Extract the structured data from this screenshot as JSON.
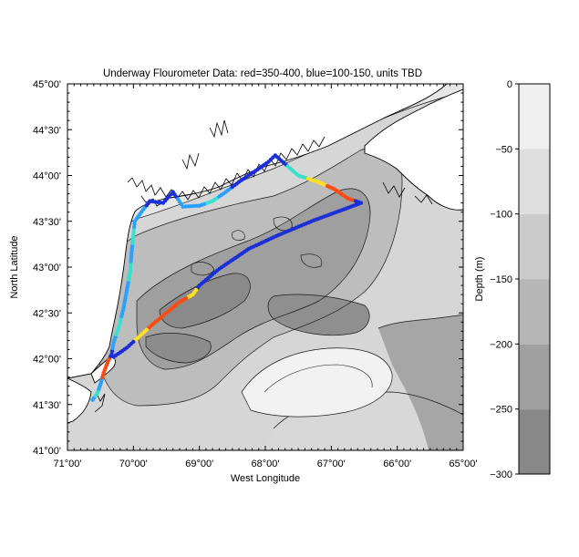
{
  "figure": {
    "title": "Underway Flourometer Data: red=350-400, blue=100-150, units TBD",
    "xlabel": "West Longitude",
    "ylabel": "North Latitude",
    "colorbar_label": "Depth (m)"
  },
  "map": {
    "lon_range": [
      -71.0,
      -65.0
    ],
    "lat_range": [
      41.0,
      45.0
    ],
    "x_ticks": [
      "71°00'",
      "70°00'",
      "69°00'",
      "68°00'",
      "67°00'",
      "66°00'",
      "65°00'"
    ],
    "y_ticks": [
      "45°00'",
      "44°30'",
      "44°00'",
      "43°30'",
      "43°00'",
      "42°30'",
      "42°00'",
      "41°30'",
      "41°00'"
    ],
    "land_color": "#ffffff",
    "coastline_color": "#000000"
  },
  "colorbar": {
    "ticks": [
      "0",
      "−50",
      "−100",
      "−150",
      "−200",
      "−250",
      "−300"
    ],
    "shades": [
      "#f0f0f0",
      "#dedede",
      "#cbcbcb",
      "#b6b6b6",
      "#a0a0a0",
      "#888888"
    ]
  },
  "chart_data": {
    "type": "scatter",
    "title": "Underway Flourometer Data: red=350-400, blue=100-150, units TBD",
    "xlabel": "West Longitude",
    "ylabel": "North Latitude",
    "xlim": [
      -71.0,
      -65.0
    ],
    "ylim": [
      41.0,
      45.0
    ],
    "legend": "none",
    "colors": {
      "low": "#1a2fd6",
      "mid_low": "#2aa0ff",
      "mid": "#38e0d0",
      "mid_high": "#ffe020",
      "high": "#ff4a10"
    },
    "series": [
      {
        "name": "Underway Flourometer Data",
        "points": [
          {
            "lon": -70.62,
            "lat": 41.55,
            "level": "mid_low"
          },
          {
            "lon": -70.55,
            "lat": 41.62,
            "level": "mid"
          },
          {
            "lon": -70.5,
            "lat": 41.72,
            "level": "mid_low"
          },
          {
            "lon": -70.45,
            "lat": 41.85,
            "level": "high"
          },
          {
            "lon": -70.38,
            "lat": 41.98,
            "level": "high"
          },
          {
            "lon": -70.33,
            "lat": 42.05,
            "level": "low"
          },
          {
            "lon": -70.3,
            "lat": 42.18,
            "level": "mid_low"
          },
          {
            "lon": -70.22,
            "lat": 42.35,
            "level": "mid"
          },
          {
            "lon": -70.15,
            "lat": 42.55,
            "level": "mid_low"
          },
          {
            "lon": -70.1,
            "lat": 42.75,
            "level": "mid_low"
          },
          {
            "lon": -70.05,
            "lat": 42.95,
            "level": "mid"
          },
          {
            "lon": -70.03,
            "lat": 43.15,
            "level": "mid_low"
          },
          {
            "lon": -70.0,
            "lat": 43.35,
            "level": "mid"
          },
          {
            "lon": -69.98,
            "lat": 43.5,
            "level": "mid_low"
          },
          {
            "lon": -69.85,
            "lat": 43.63,
            "level": "mid_low"
          },
          {
            "lon": -69.75,
            "lat": 43.72,
            "level": "low"
          },
          {
            "lon": -69.55,
            "lat": 43.7,
            "level": "low"
          },
          {
            "lon": -69.4,
            "lat": 43.82,
            "level": "low"
          },
          {
            "lon": -69.25,
            "lat": 43.66,
            "level": "mid_low"
          },
          {
            "lon": -69.0,
            "lat": 43.67,
            "level": "mid_low"
          },
          {
            "lon": -68.8,
            "lat": 43.72,
            "level": "mid"
          },
          {
            "lon": -68.6,
            "lat": 43.82,
            "level": "mid_low"
          },
          {
            "lon": -68.4,
            "lat": 43.93,
            "level": "low"
          },
          {
            "lon": -68.15,
            "lat": 44.05,
            "level": "low"
          },
          {
            "lon": -67.95,
            "lat": 44.15,
            "level": "low"
          },
          {
            "lon": -67.85,
            "lat": 44.22,
            "level": "low"
          },
          {
            "lon": -67.5,
            "lat": 44.0,
            "level": "mid"
          },
          {
            "lon": -67.2,
            "lat": 43.93,
            "level": "mid_high"
          },
          {
            "lon": -66.95,
            "lat": 43.85,
            "level": "high"
          },
          {
            "lon": -66.75,
            "lat": 43.75,
            "level": "high"
          },
          {
            "lon": -66.55,
            "lat": 43.7,
            "level": "low"
          },
          {
            "lon": -66.85,
            "lat": 43.62,
            "level": "low"
          },
          {
            "lon": -67.3,
            "lat": 43.5,
            "level": "low"
          },
          {
            "lon": -67.8,
            "lat": 43.35,
            "level": "low"
          },
          {
            "lon": -68.25,
            "lat": 43.2,
            "level": "low"
          },
          {
            "lon": -68.7,
            "lat": 42.98,
            "level": "low"
          },
          {
            "lon": -69.0,
            "lat": 42.8,
            "level": "low"
          },
          {
            "lon": -69.1,
            "lat": 42.7,
            "level": "mid_high"
          },
          {
            "lon": -69.3,
            "lat": 42.62,
            "level": "high"
          },
          {
            "lon": -69.5,
            "lat": 42.5,
            "level": "high"
          },
          {
            "lon": -69.7,
            "lat": 42.38,
            "level": "high"
          },
          {
            "lon": -69.9,
            "lat": 42.25,
            "level": "mid_high"
          },
          {
            "lon": -70.1,
            "lat": 42.12,
            "level": "low"
          },
          {
            "lon": -70.3,
            "lat": 42.02,
            "level": "low"
          }
        ]
      }
    ]
  }
}
